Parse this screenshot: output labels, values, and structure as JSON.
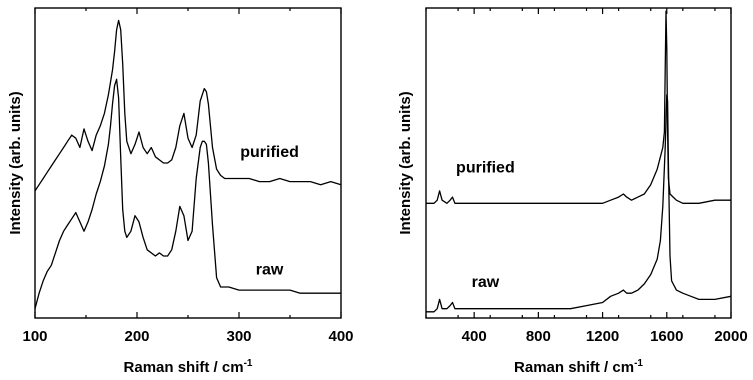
{
  "chart_data": [
    {
      "type": "line",
      "xlabel": "Raman shift / cm",
      "xlabel_sup": "-1",
      "ylabel": "Intensity (arb. units)",
      "xlim": [
        100,
        400
      ],
      "xticks": [
        100,
        200,
        300,
        400
      ],
      "ylim": [
        0,
        1
      ],
      "y_ticks_shown": false,
      "series": [
        {
          "name": "purified",
          "x": [
            100,
            104,
            108,
            112,
            116,
            120,
            124,
            128,
            132,
            136,
            140,
            144,
            148,
            152,
            156,
            160,
            164,
            168,
            172,
            176,
            178,
            180,
            182,
            184,
            186,
            188,
            190,
            194,
            198,
            202,
            206,
            210,
            214,
            218,
            222,
            226,
            230,
            234,
            238,
            242,
            246,
            250,
            254,
            258,
            262,
            266,
            268,
            270,
            274,
            278,
            282,
            286,
            290,
            300,
            310,
            320,
            330,
            340,
            350,
            360,
            370,
            380,
            390,
            400
          ],
          "y": [
            0.41,
            0.43,
            0.45,
            0.47,
            0.49,
            0.51,
            0.53,
            0.55,
            0.57,
            0.59,
            0.58,
            0.55,
            0.61,
            0.57,
            0.54,
            0.59,
            0.62,
            0.66,
            0.72,
            0.8,
            0.86,
            0.93,
            0.96,
            0.93,
            0.82,
            0.66,
            0.57,
            0.53,
            0.56,
            0.6,
            0.55,
            0.53,
            0.55,
            0.52,
            0.51,
            0.5,
            0.5,
            0.51,
            0.55,
            0.62,
            0.66,
            0.58,
            0.55,
            0.59,
            0.7,
            0.74,
            0.73,
            0.69,
            0.55,
            0.48,
            0.46,
            0.45,
            0.45,
            0.45,
            0.45,
            0.44,
            0.44,
            0.45,
            0.44,
            0.44,
            0.44,
            0.43,
            0.44,
            0.43
          ]
        },
        {
          "name": "raw",
          "x": [
            100,
            104,
            108,
            112,
            116,
            120,
            124,
            128,
            132,
            136,
            140,
            144,
            148,
            152,
            156,
            160,
            164,
            168,
            172,
            174,
            176,
            178,
            180,
            182,
            184,
            186,
            188,
            190,
            194,
            198,
            202,
            206,
            210,
            214,
            218,
            222,
            226,
            230,
            234,
            238,
            242,
            246,
            250,
            254,
            258,
            262,
            264,
            266,
            268,
            270,
            274,
            278,
            282,
            290,
            300,
            310,
            320,
            330,
            340,
            350,
            360,
            370,
            380,
            390,
            400
          ],
          "y": [
            0.03,
            0.08,
            0.12,
            0.15,
            0.17,
            0.21,
            0.25,
            0.28,
            0.3,
            0.32,
            0.34,
            0.31,
            0.28,
            0.31,
            0.35,
            0.4,
            0.44,
            0.49,
            0.56,
            0.62,
            0.69,
            0.75,
            0.77,
            0.71,
            0.52,
            0.35,
            0.28,
            0.26,
            0.28,
            0.33,
            0.31,
            0.26,
            0.22,
            0.21,
            0.2,
            0.21,
            0.2,
            0.2,
            0.22,
            0.28,
            0.36,
            0.33,
            0.25,
            0.28,
            0.45,
            0.55,
            0.57,
            0.57,
            0.56,
            0.5,
            0.3,
            0.13,
            0.1,
            0.1,
            0.09,
            0.09,
            0.09,
            0.09,
            0.09,
            0.09,
            0.08,
            0.08,
            0.08,
            0.08,
            0.08
          ]
        }
      ],
      "annotations": [
        {
          "text": "purified",
          "x": 330,
          "y": 0.52
        },
        {
          "text": "raw",
          "x": 330,
          "y": 0.14
        }
      ]
    },
    {
      "type": "line",
      "xlabel": "Raman shift / cm",
      "xlabel_sup": "-1",
      "ylabel": "Intensity (arb. units)",
      "xlim": [
        100,
        2000
      ],
      "xticks": [
        400,
        800,
        1200,
        1600,
        2000
      ],
      "ylim": [
        0,
        1
      ],
      "y_ticks_shown": false,
      "series": [
        {
          "name": "purified",
          "x": [
            100,
            150,
            170,
            185,
            200,
            230,
            250,
            265,
            280,
            300,
            400,
            600,
            800,
            1000,
            1100,
            1200,
            1250,
            1300,
            1330,
            1350,
            1380,
            1420,
            1460,
            1500,
            1540,
            1560,
            1575,
            1585,
            1590,
            1595,
            1600,
            1605,
            1610,
            1620,
            1640,
            1660,
            1700,
            1750,
            1800,
            1900,
            2000
          ],
          "y": [
            0.37,
            0.37,
            0.38,
            0.41,
            0.38,
            0.37,
            0.38,
            0.39,
            0.37,
            0.37,
            0.37,
            0.37,
            0.37,
            0.37,
            0.37,
            0.37,
            0.38,
            0.39,
            0.4,
            0.39,
            0.38,
            0.39,
            0.4,
            0.43,
            0.48,
            0.52,
            0.55,
            0.6,
            0.8,
            0.99,
            0.87,
            0.6,
            0.45,
            0.4,
            0.39,
            0.38,
            0.37,
            0.37,
            0.37,
            0.38,
            0.38
          ]
        },
        {
          "name": "raw",
          "x": [
            100,
            150,
            170,
            185,
            200,
            230,
            250,
            265,
            280,
            300,
            400,
            600,
            800,
            1000,
            1100,
            1200,
            1250,
            1300,
            1330,
            1350,
            1380,
            1420,
            1460,
            1500,
            1540,
            1560,
            1575,
            1590,
            1600,
            1605,
            1610,
            1620,
            1630,
            1660,
            1700,
            1750,
            1800,
            1900,
            2000
          ],
          "y": [
            0.02,
            0.02,
            0.03,
            0.06,
            0.03,
            0.03,
            0.04,
            0.05,
            0.03,
            0.03,
            0.03,
            0.03,
            0.03,
            0.03,
            0.04,
            0.05,
            0.07,
            0.08,
            0.09,
            0.08,
            0.08,
            0.09,
            0.11,
            0.14,
            0.19,
            0.25,
            0.36,
            0.55,
            0.72,
            0.7,
            0.5,
            0.2,
            0.12,
            0.09,
            0.08,
            0.07,
            0.06,
            0.06,
            0.07
          ]
        }
      ],
      "annotations": [
        {
          "text": "purified",
          "x": 470,
          "y": 0.47
        },
        {
          "text": "raw",
          "x": 470,
          "y": 0.1
        }
      ]
    }
  ]
}
